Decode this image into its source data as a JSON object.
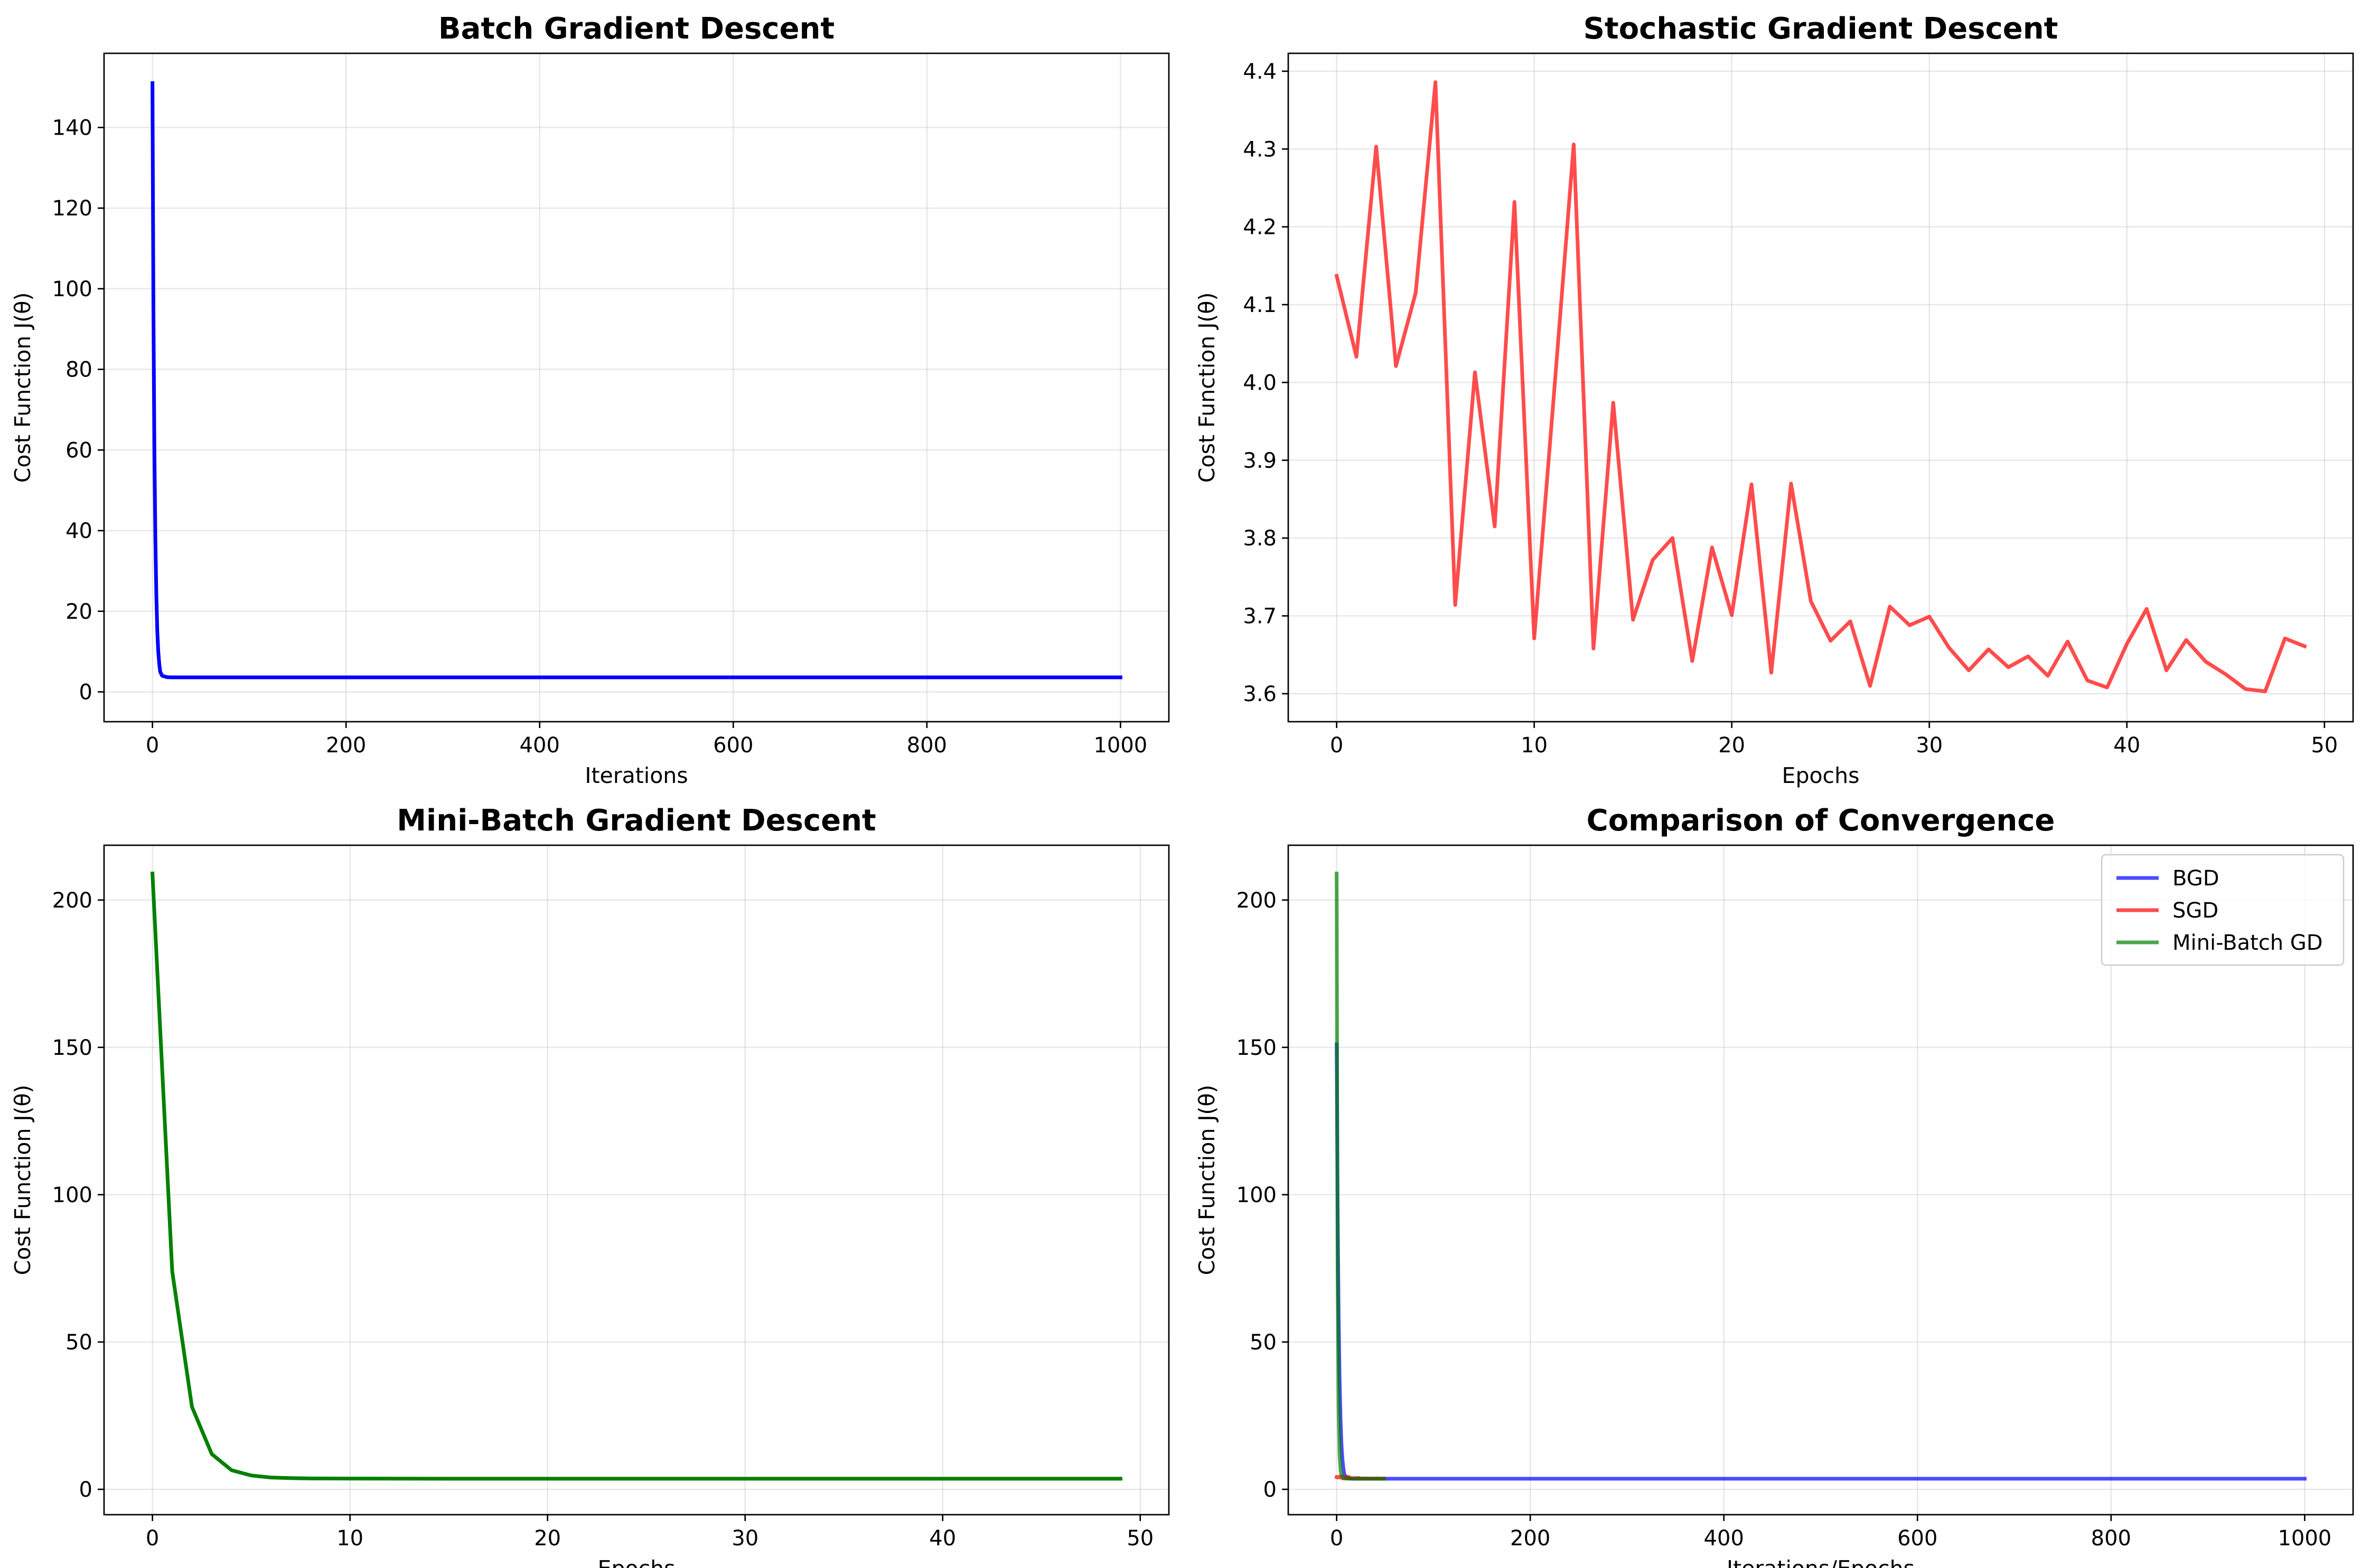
{
  "chart_data": [
    {
      "type": "line",
      "title": "Batch Gradient Descent",
      "xlabel": "Iterations",
      "ylabel": "Cost Function J(θ)",
      "xlim": [
        -50,
        1050
      ],
      "ylim": [
        -7.4,
        158.4
      ],
      "xticks": [
        0,
        200,
        400,
        600,
        800,
        1000
      ],
      "yticks": [
        0,
        20,
        40,
        60,
        80,
        100,
        120,
        140
      ],
      "grid": true,
      "legend": null,
      "series": [
        {
          "color": "#0000ff",
          "alpha": 1,
          "x": [
            0,
            1,
            2,
            3,
            4,
            5,
            6,
            7,
            8,
            10,
            15,
            20,
            50,
            100,
            200,
            300,
            400,
            500,
            600,
            700,
            800,
            900,
            1000
          ],
          "y": [
            151,
            95,
            60,
            38,
            24,
            15,
            10,
            7,
            5,
            4,
            3.65,
            3.6,
            3.6,
            3.6,
            3.6,
            3.6,
            3.6,
            3.6,
            3.6,
            3.6,
            3.6,
            3.6,
            3.6
          ]
        }
      ]
    },
    {
      "type": "line",
      "title": "Stochastic Gradient Descent",
      "xlabel": "Epochs",
      "ylabel": "Cost Function J(θ)",
      "xlim": [
        -2.45,
        51.45
      ],
      "ylim": [
        3.564,
        4.423
      ],
      "xticks": [
        0,
        10,
        20,
        30,
        40,
        50
      ],
      "yticks": [
        3.6,
        3.7,
        3.8,
        3.9,
        4.0,
        4.1,
        4.2,
        4.3,
        4.4
      ],
      "ytick_labels": [
        "3.6",
        "3.7",
        "3.8",
        "3.9",
        "4.0",
        "4.1",
        "4.2",
        "4.3",
        "4.4"
      ],
      "grid": true,
      "legend": null,
      "series": [
        {
          "color": "#ff0000",
          "alpha": 0.7,
          "x": [
            0,
            1,
            2,
            3,
            4,
            5,
            6,
            7,
            8,
            9,
            10,
            11,
            12,
            13,
            14,
            15,
            16,
            17,
            18,
            19,
            20,
            21,
            22,
            23,
            24,
            25,
            26,
            27,
            28,
            29,
            30,
            31,
            32,
            33,
            34,
            35,
            36,
            37,
            38,
            39,
            40,
            41,
            42,
            43,
            44,
            45,
            46,
            47,
            48,
            49
          ],
          "y": [
            4.137,
            4.033,
            4.303,
            4.021,
            4.115,
            4.386,
            3.714,
            4.013,
            3.815,
            4.232,
            3.671,
            3.985,
            4.306,
            3.658,
            3.974,
            3.695,
            3.772,
            3.8,
            3.642,
            3.788,
            3.701,
            3.869,
            3.627,
            3.87,
            3.719,
            3.668,
            3.693,
            3.61,
            3.712,
            3.688,
            3.699,
            3.659,
            3.63,
            3.657,
            3.634,
            3.648,
            3.623,
            3.667,
            3.617,
            3.608,
            3.664,
            3.709,
            3.63,
            3.669,
            3.641,
            3.625,
            3.606,
            3.603,
            3.671,
            3.661
          ]
        }
      ]
    },
    {
      "type": "line",
      "title": "Mini-Batch Gradient Descent",
      "xlabel": "Epochs",
      "ylabel": "Cost Function J(θ)",
      "xlim": [
        -2.45,
        51.45
      ],
      "ylim": [
        -8.6,
        218.6
      ],
      "xticks": [
        0,
        10,
        20,
        30,
        40,
        50
      ],
      "yticks": [
        0,
        50,
        100,
        150,
        200
      ],
      "grid": true,
      "legend": null,
      "series": [
        {
          "color": "#008000",
          "alpha": 1,
          "x": [
            0,
            1,
            2,
            3,
            4,
            5,
            6,
            7,
            8,
            10,
            15,
            20,
            30,
            40,
            49
          ],
          "y": [
            209,
            74,
            28,
            12,
            6.5,
            4.7,
            4.0,
            3.8,
            3.7,
            3.65,
            3.6,
            3.6,
            3.6,
            3.6,
            3.6
          ]
        }
      ]
    },
    {
      "type": "line",
      "title": "Comparison of Convergence",
      "xlabel": "Iterations/Epochs",
      "ylabel": "Cost Function J(θ)",
      "xlim": [
        -50,
        1050
      ],
      "ylim": [
        -8.6,
        218.6
      ],
      "xticks": [
        0,
        200,
        400,
        600,
        800,
        1000
      ],
      "yticks": [
        0,
        50,
        100,
        150,
        200
      ],
      "grid": true,
      "legend": "top-right",
      "series": [
        {
          "name": "BGD",
          "color": "#0000ff",
          "alpha": 0.7,
          "x": [
            0,
            1,
            2,
            3,
            4,
            5,
            6,
            7,
            8,
            10,
            15,
            20,
            50,
            100,
            200,
            300,
            400,
            500,
            600,
            700,
            800,
            900,
            1000
          ],
          "y": [
            151,
            95,
            60,
            38,
            24,
            15,
            10,
            7,
            5,
            4,
            3.65,
            3.6,
            3.6,
            3.6,
            3.6,
            3.6,
            3.6,
            3.6,
            3.6,
            3.6,
            3.6,
            3.6,
            3.6
          ]
        },
        {
          "name": "SGD",
          "color": "#ff0000",
          "alpha": 0.7,
          "x": [
            0,
            1,
            2,
            3,
            4,
            5,
            6,
            7,
            8,
            9,
            10,
            11,
            12,
            13,
            14,
            15,
            16,
            17,
            18,
            19,
            20,
            21,
            22,
            23,
            24,
            25,
            26,
            27,
            28,
            29,
            30,
            31,
            32,
            33,
            34,
            35,
            36,
            37,
            38,
            39,
            40,
            41,
            42,
            43,
            44,
            45,
            46,
            47,
            48,
            49
          ],
          "y": [
            4.137,
            4.033,
            4.303,
            4.021,
            4.115,
            4.386,
            3.714,
            4.013,
            3.815,
            4.232,
            3.671,
            3.985,
            4.306,
            3.658,
            3.974,
            3.695,
            3.772,
            3.8,
            3.642,
            3.788,
            3.701,
            3.869,
            3.627,
            3.87,
            3.719,
            3.668,
            3.693,
            3.61,
            3.712,
            3.688,
            3.699,
            3.659,
            3.63,
            3.657,
            3.634,
            3.648,
            3.623,
            3.667,
            3.617,
            3.608,
            3.664,
            3.709,
            3.63,
            3.669,
            3.641,
            3.625,
            3.606,
            3.603,
            3.671,
            3.661
          ]
        },
        {
          "name": "Mini-Batch GD",
          "color": "#008000",
          "alpha": 0.7,
          "x": [
            0,
            1,
            2,
            3,
            4,
            5,
            6,
            7,
            8,
            10,
            15,
            20,
            30,
            40,
            49
          ],
          "y": [
            209,
            74,
            28,
            12,
            6.5,
            4.7,
            4.0,
            3.8,
            3.7,
            3.65,
            3.6,
            3.6,
            3.6,
            3.6,
            3.6
          ]
        }
      ]
    }
  ]
}
